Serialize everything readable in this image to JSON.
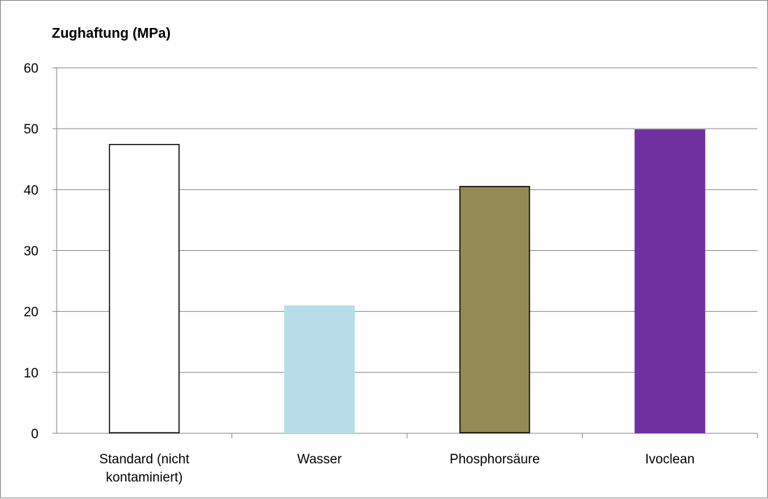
{
  "chart_data": {
    "type": "bar",
    "title": "Zughaftung (MPa)",
    "xlabel": "",
    "ylabel": "",
    "ylim": [
      0,
      60
    ],
    "yticks": [
      0,
      10,
      20,
      30,
      40,
      50,
      60
    ],
    "grid": true,
    "legend": "none",
    "categories": [
      [
        "Standard (nicht",
        "kontaminiert)"
      ],
      [
        "Wasser"
      ],
      [
        "Phosphorsäure"
      ],
      [
        "Ivoclean"
      ]
    ],
    "values": [
      47.5,
      21.0,
      40.6,
      49.9
    ],
    "colors": [
      "#ffffff",
      "#b7dde8",
      "#948a54",
      "#7030a0"
    ],
    "outlined": [
      true,
      false,
      true,
      false
    ]
  }
}
